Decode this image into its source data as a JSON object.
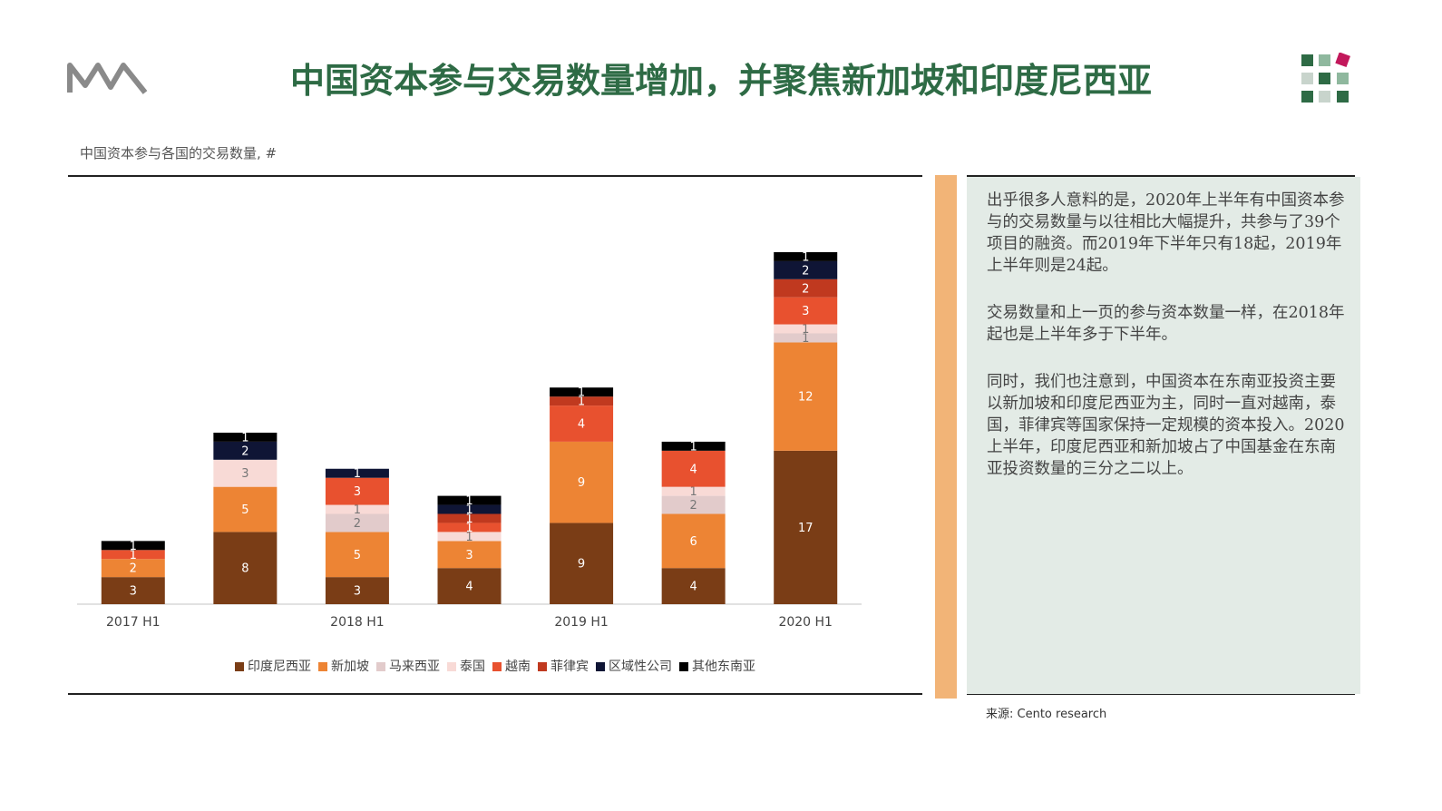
{
  "title": "中国资本参与交易数量增加，并聚焦新加坡和印度尼西亚",
  "chart_data": {
    "type": "stacked_bar",
    "subtitle": "中国资本参与各国的交易数量, #",
    "categories": [
      "2017 H1",
      null,
      "2018 H1",
      null,
      "2019 H1",
      null,
      "2020 H1"
    ],
    "series": [
      {
        "name": "印度尼西亚",
        "color": "#7a3d16",
        "values": [
          3,
          8,
          3,
          4,
          9,
          4,
          17
        ]
      },
      {
        "name": "新加坡",
        "color": "#ed8434",
        "values": [
          2,
          5,
          5,
          3,
          9,
          6,
          12
        ]
      },
      {
        "name": "马来西亚",
        "color": "#e2cbcb",
        "values": [
          null,
          null,
          2,
          null,
          null,
          2,
          1
        ]
      },
      {
        "name": "泰国",
        "color": "#f8dad6",
        "values": [
          null,
          3,
          1,
          1,
          null,
          1,
          1
        ]
      },
      {
        "name": "越南",
        "color": "#e8512f",
        "values": [
          1,
          null,
          3,
          1,
          4,
          4,
          3
        ]
      },
      {
        "name": "菲律宾",
        "color": "#c0391f",
        "values": [
          null,
          null,
          null,
          1,
          1,
          null,
          2
        ]
      },
      {
        "name": "区域性公司",
        "color": "#0f1535",
        "values": [
          null,
          2,
          1,
          1,
          null,
          null,
          2
        ]
      },
      {
        "name": "其他东南亚",
        "color": "#000000",
        "values": [
          1,
          1,
          null,
          1,
          1,
          1,
          1
        ]
      }
    ]
  },
  "paragraphs": [
    "出乎很多人意料的是，2020年上半年有中国资本参与的交易数量与以往相比大幅提升，共参与了39个项目的融资。而2019年下半年只有18起，2019年上半年则是24起。",
    "交易数量和上一页的参与资本数量一样，在2018年起也是上半年多于下半年。",
    "同时，我们也注意到，中国资本在东南亚投资主要以新加坡和印度尼西亚为主，同时一直对越南，泰国，菲律宾等国家保持一定规模的资本投入。2020上半年，印度尼西亚和新加坡占了中国基金在东南亚投资数量的三分之二以上。"
  ],
  "source": "来源: Cento research"
}
